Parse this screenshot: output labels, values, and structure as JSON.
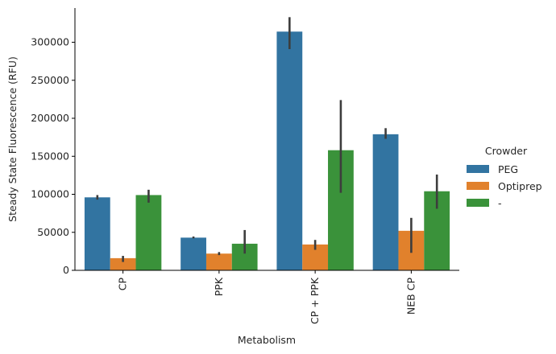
{
  "chart_data": {
    "type": "bar",
    "title": "",
    "xlabel": "Metabolism",
    "ylabel": "Steady State Fluorescence (RFU)",
    "categories": [
      "CP",
      "PPK",
      "CP + PPK",
      "NEB CP"
    ],
    "yticks": [
      0,
      50000,
      100000,
      150000,
      200000,
      250000,
      300000
    ],
    "ytick_labels": [
      "0",
      "50000",
      "100000",
      "150000",
      "200000",
      "250000",
      "300000"
    ],
    "ylim": [
      0,
      345000
    ],
    "grid": false,
    "legend_title": "Crowder",
    "legend_position": "right",
    "series": [
      {
        "name": "PEG",
        "color": "#3274a1",
        "values": [
          96000,
          43000,
          314000,
          179000
        ],
        "err_low": [
          93000,
          42000,
          291000,
          173000
        ],
        "err_high": [
          99000,
          44500,
          333000,
          187000
        ]
      },
      {
        "name": "Optiprep",
        "color": "#e1812c",
        "values": [
          16000,
          22000,
          34000,
          52000
        ],
        "err_low": [
          11000,
          20000,
          27000,
          23000
        ],
        "err_high": [
          19000,
          24000,
          40000,
          69000
        ]
      },
      {
        "name": "-",
        "color": "#3a923a",
        "values": [
          99000,
          35000,
          158000,
          104000
        ],
        "err_low": [
          89000,
          22000,
          102000,
          81000
        ],
        "err_high": [
          106000,
          53000,
          224000,
          126000
        ]
      }
    ]
  }
}
